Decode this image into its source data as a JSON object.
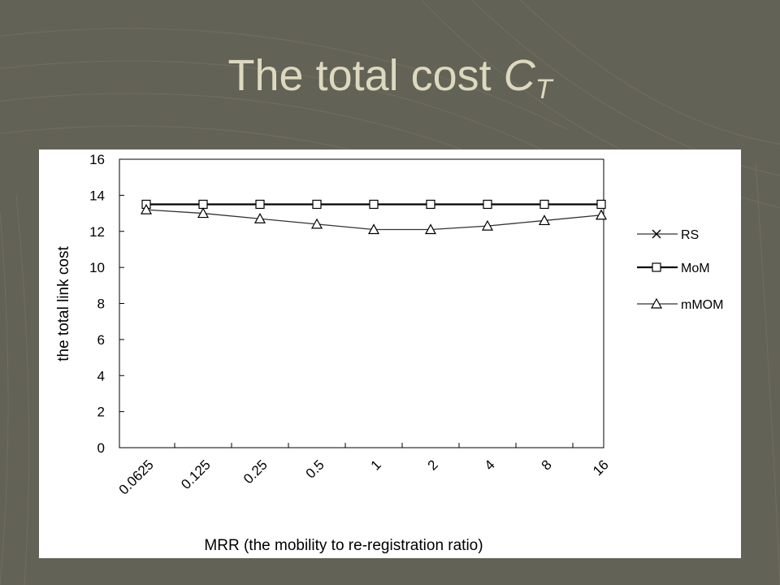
{
  "slide": {
    "title_main": "The total cost ",
    "title_symbol": "C",
    "title_subscript": "T"
  },
  "colors": {
    "background": "#636256",
    "title": "#dcd9bf",
    "panel": "#ffffff",
    "ink": "#000000"
  },
  "chart_data": {
    "type": "line",
    "title": "",
    "xlabel": "MRR (the mobility to re-registration ratio)",
    "ylabel": "the total link cost",
    "categories": [
      "0.0625",
      "0.125",
      "0.25",
      "0.5",
      "1",
      "2",
      "4",
      "8",
      "16"
    ],
    "yticks": [
      "0",
      "2",
      "4",
      "6",
      "8",
      "10",
      "12",
      "14",
      "16"
    ],
    "ylim": [
      0,
      16
    ],
    "grid": false,
    "legend_position": "right",
    "series": [
      {
        "name": "RS",
        "marker": "x",
        "values": [
          13.5,
          13.5,
          13.5,
          13.5,
          13.5,
          13.5,
          13.5,
          13.5,
          13.5
        ]
      },
      {
        "name": "MoM",
        "marker": "square",
        "values": [
          13.5,
          13.5,
          13.5,
          13.5,
          13.5,
          13.5,
          13.5,
          13.5,
          13.5
        ]
      },
      {
        "name": "mMOM",
        "marker": "triangle",
        "values": [
          13.2,
          13.0,
          12.7,
          12.4,
          12.1,
          12.1,
          12.3,
          12.6,
          12.9
        ]
      }
    ]
  }
}
